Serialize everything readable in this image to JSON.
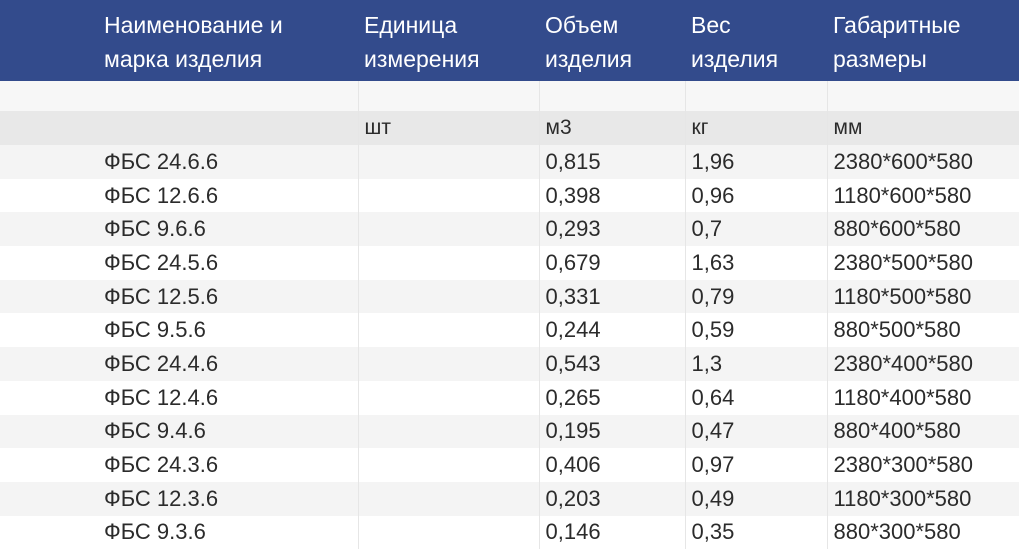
{
  "table": {
    "headers": [
      "Наименование и марка изделия",
      "Единица измерения",
      "Объем изделия",
      "Вес изделия",
      "Габаритные размеры"
    ],
    "units": [
      "",
      "шт",
      "м3",
      "кг",
      "мм"
    ],
    "rows": [
      [
        "ФБС 24.6.6",
        "",
        "0,815",
        "1,96",
        "2380*600*580"
      ],
      [
        "ФБС 12.6.6",
        "",
        "0,398",
        "0,96",
        "1180*600*580"
      ],
      [
        "ФБС 9.6.6",
        "",
        "0,293",
        "0,7",
        "880*600*580"
      ],
      [
        "ФБС 24.5.6",
        "",
        "0,679",
        "1,63",
        "2380*500*580"
      ],
      [
        "ФБС 12.5.6",
        "",
        "0,331",
        "0,79",
        "1180*500*580"
      ],
      [
        "ФБС 9.5.6",
        "",
        "0,244",
        "0,59",
        "880*500*580"
      ],
      [
        "ФБС 24.4.6",
        "",
        "0,543",
        "1,3",
        "2380*400*580"
      ],
      [
        "ФБС 12.4.6",
        "",
        "0,265",
        "0,64",
        "1180*400*580"
      ],
      [
        "ФБС 9.4.6",
        "",
        "0,195",
        "0,47",
        "880*400*580"
      ],
      [
        "ФБС 24.3.6",
        "",
        "0,406",
        "0,97",
        "2380*300*580"
      ],
      [
        "ФБС 12.3.6",
        "",
        "0,203",
        "0,49",
        "1180*300*580"
      ],
      [
        "ФБС 9.3.6",
        "",
        "0,146",
        "0,35",
        "880*300*580"
      ]
    ]
  },
  "colors": {
    "header_bg": "#334b8c",
    "header_text": "#ffffff",
    "stripe": "#f4f4f4",
    "unit_row_bg": "#e8e8e8"
  }
}
